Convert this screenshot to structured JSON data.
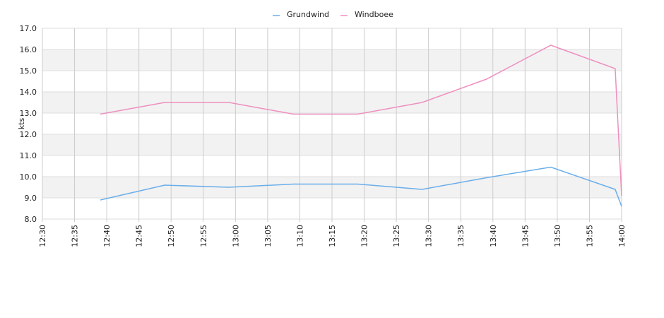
{
  "chart_data": {
    "type": "line",
    "y_label": "kts",
    "x": [
      "12:39",
      "12:49",
      "12:59",
      "13:09",
      "13:19",
      "13:29",
      "13:39",
      "13:49",
      "13:59",
      "14:00"
    ],
    "series": [
      {
        "name": "Grundwind",
        "color": "#6aaeea",
        "values": [
          8.9,
          9.6,
          9.5,
          9.65,
          9.65,
          9.4,
          9.95,
          10.45,
          9.4,
          8.6
        ]
      },
      {
        "name": "Windboee",
        "color": "#ee8fc0",
        "values": [
          12.95,
          13.5,
          13.5,
          12.95,
          12.95,
          13.5,
          14.6,
          16.2,
          15.1,
          9.1
        ]
      }
    ],
    "xlim": [
      "12:30",
      "14:00"
    ],
    "xticks": [
      "12:30",
      "12:35",
      "12:40",
      "12:45",
      "12:50",
      "12:55",
      "13:00",
      "13:05",
      "13:10",
      "13:15",
      "13:20",
      "13:25",
      "13:30",
      "13:35",
      "13:40",
      "13:45",
      "13:50",
      "13:55",
      "14:00"
    ],
    "ylim": [
      8,
      17
    ],
    "yticks": [
      {
        "value": 8,
        "label": "8.0"
      },
      {
        "value": 9,
        "label": "9.0"
      },
      {
        "value": 10,
        "label": "10.0"
      },
      {
        "value": 11,
        "label": "11.0"
      },
      {
        "value": 12,
        "label": "12.0"
      },
      {
        "value": 13,
        "label": "13.0"
      },
      {
        "value": 14,
        "label": "14.0"
      },
      {
        "value": 15,
        "label": "15.0"
      },
      {
        "value": 16,
        "label": "16.0"
      },
      {
        "value": 17,
        "label": "17.0"
      }
    ],
    "grid": true,
    "legend": "top"
  }
}
